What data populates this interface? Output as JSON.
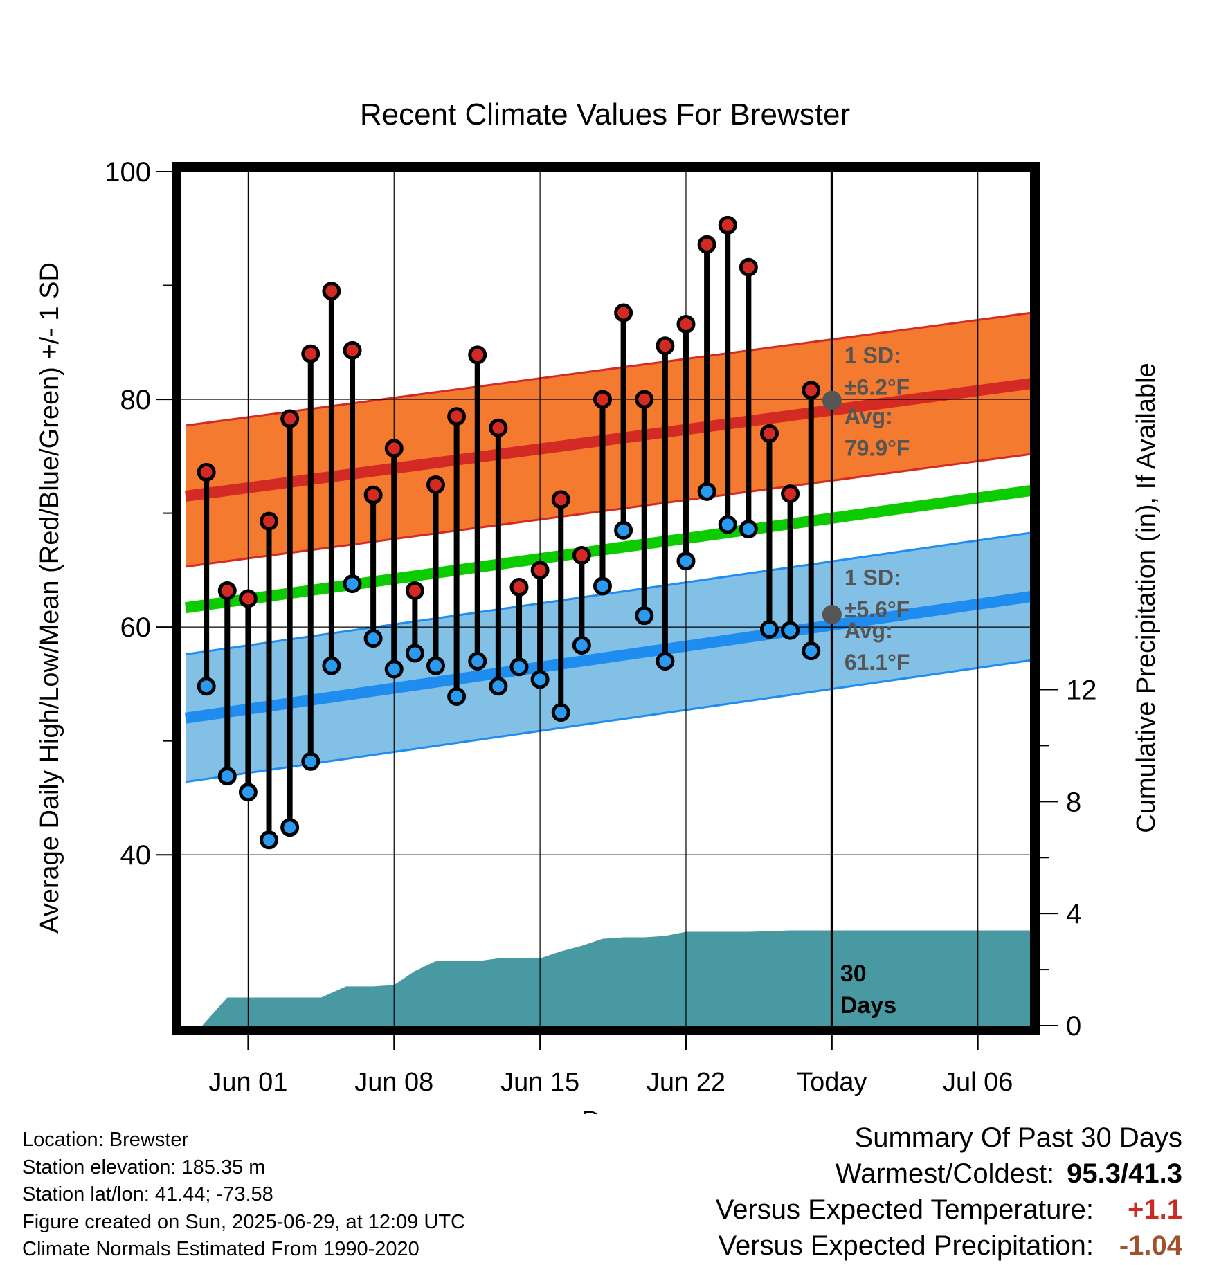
{
  "chart_data": {
    "type": "line",
    "title": "Recent Climate Values For Brewster",
    "xlabel": "Day",
    "ylabel": "Average Daily High/Low/Mean (Red/Blue/Green) +/- 1 SD",
    "y2label": "Cumulative Precipitation (in), If Available",
    "ylim": [
      25,
      100
    ],
    "y2lim": [
      0,
      30.5
    ],
    "yticks": [
      "40",
      "60",
      "80",
      "100"
    ],
    "y2ticks": [
      "0",
      "4",
      "8",
      "12"
    ],
    "xticks": [
      "Jun 01",
      "Jun 08",
      "Jun 15",
      "Jun 22",
      "Today",
      "Jul 06"
    ],
    "xlim": [
      -3.2,
      37.5
    ],
    "xtick_positions": [
      0,
      7,
      14,
      21,
      28,
      35
    ],
    "today_x": 28,
    "days_label": "30\nDays",
    "grid": true,
    "observations": {
      "dates": [
        "May 31",
        "Jun 01",
        "Jun 02",
        "Jun 03",
        "Jun 04",
        "Jun 05",
        "Jun 06",
        "Jun 07",
        "Jun 08",
        "Jun 09",
        "Jun 10",
        "Jun 11",
        "Jun 12",
        "Jun 13",
        "Jun 14",
        "Jun 15",
        "Jun 16",
        "Jun 17",
        "Jun 18",
        "Jun 19",
        "Jun 20",
        "Jun 21",
        "Jun 22",
        "Jun 23",
        "Jun 24",
        "Jun 25",
        "Jun 26",
        "Jun 27",
        "Jun 28",
        "Jun 29"
      ],
      "x": [
        -2,
        -1,
        0,
        1,
        2,
        3,
        4,
        5,
        6,
        7,
        8,
        9,
        10,
        11,
        12,
        13,
        14,
        15,
        16,
        17,
        18,
        19,
        20,
        21,
        22,
        23,
        24,
        25,
        26,
        27
      ],
      "high": [
        73.6,
        63.2,
        62.5,
        69.3,
        78.3,
        84.0,
        89.5,
        84.3,
        71.6,
        75.7,
        63.2,
        72.5,
        78.5,
        83.9,
        77.5,
        63.5,
        65.0,
        71.2,
        66.3,
        80.0,
        87.6,
        80.0,
        84.7,
        86.6,
        93.6,
        95.3,
        91.6,
        77.0,
        71.7,
        80.8
      ],
      "low": [
        54.8,
        46.9,
        45.5,
        41.3,
        42.4,
        48.2,
        56.6,
        63.8,
        59.0,
        56.3,
        57.7,
        56.6,
        53.9,
        57.0,
        54.8,
        56.5,
        55.4,
        52.5,
        58.4,
        63.6,
        68.5,
        61.0,
        57.0,
        65.8,
        71.9,
        69.0,
        68.6,
        59.8,
        59.7,
        57.9
      ]
    },
    "normals": {
      "x": [
        -3,
        38
      ],
      "high_avg": [
        71.5,
        81.5
      ],
      "high_sd": 6.2,
      "low_avg": [
        52.0,
        62.8
      ],
      "low_sd": 5.6,
      "mean_avg": [
        61.7,
        72.1
      ]
    },
    "precipitation": {
      "x": [
        -2.2,
        -1,
        3.5,
        4.7,
        5.3,
        6,
        7,
        8,
        9,
        10,
        11,
        12,
        13,
        14,
        15,
        16,
        17,
        18,
        19,
        20,
        21,
        22,
        23,
        24,
        25,
        26,
        27,
        28,
        29,
        37.5
      ],
      "cumulative": [
        0,
        1.0,
        1.0,
        1.4,
        1.4,
        1.4,
        1.45,
        1.95,
        2.3,
        2.3,
        2.3,
        2.4,
        2.4,
        2.4,
        2.65,
        2.85,
        3.1,
        3.15,
        3.15,
        3.2,
        3.35,
        3.35,
        3.35,
        3.35,
        3.37,
        3.4,
        3.4,
        3.4,
        3.4,
        3.4
      ]
    },
    "annotations": {
      "high_sd_label": "1 SD:",
      "high_sd_value": "±6.2°F",
      "high_avg_label": "Avg:",
      "high_avg_value": "79.9°F",
      "high_avg_today": 79.9,
      "low_sd_label": "1 SD:",
      "low_sd_value": "±5.6°F",
      "low_avg_label": "Avg:",
      "low_avg_value": "61.1°F",
      "low_avg_today": 61.1
    },
    "colors": {
      "high_band": "#f47a30",
      "high_line": "#d42a24",
      "low_band": "#82c0e6",
      "low_line": "#1f8cf0",
      "mean_line": "#0ccc00",
      "precip": "#4899a2",
      "high_marker": "#d42a24",
      "low_marker": "#2a9af0",
      "annotation_text": "#555555"
    }
  },
  "info": {
    "location": "Location: Brewster",
    "elevation": "Station elevation: 185.35 m",
    "latlon": "Station lat/lon: 41.44; -73.58",
    "created": "Figure created on Sun, 2025-06-29, at 12:09 UTC",
    "normals": "Climate Normals Estimated From 1990-2020"
  },
  "summary": {
    "title": "Summary Of Past 30 Days",
    "warm_cold_label": "Warmest/Coldest:",
    "warm_cold_value": "95.3/41.3",
    "temp_label": "Versus Expected Temperature:",
    "temp_value": "+1.1",
    "temp_color": "#cc2a24",
    "precip_label": "Versus Expected Precipitation:",
    "precip_value": "-1.04",
    "precip_color": "#a0522d"
  }
}
